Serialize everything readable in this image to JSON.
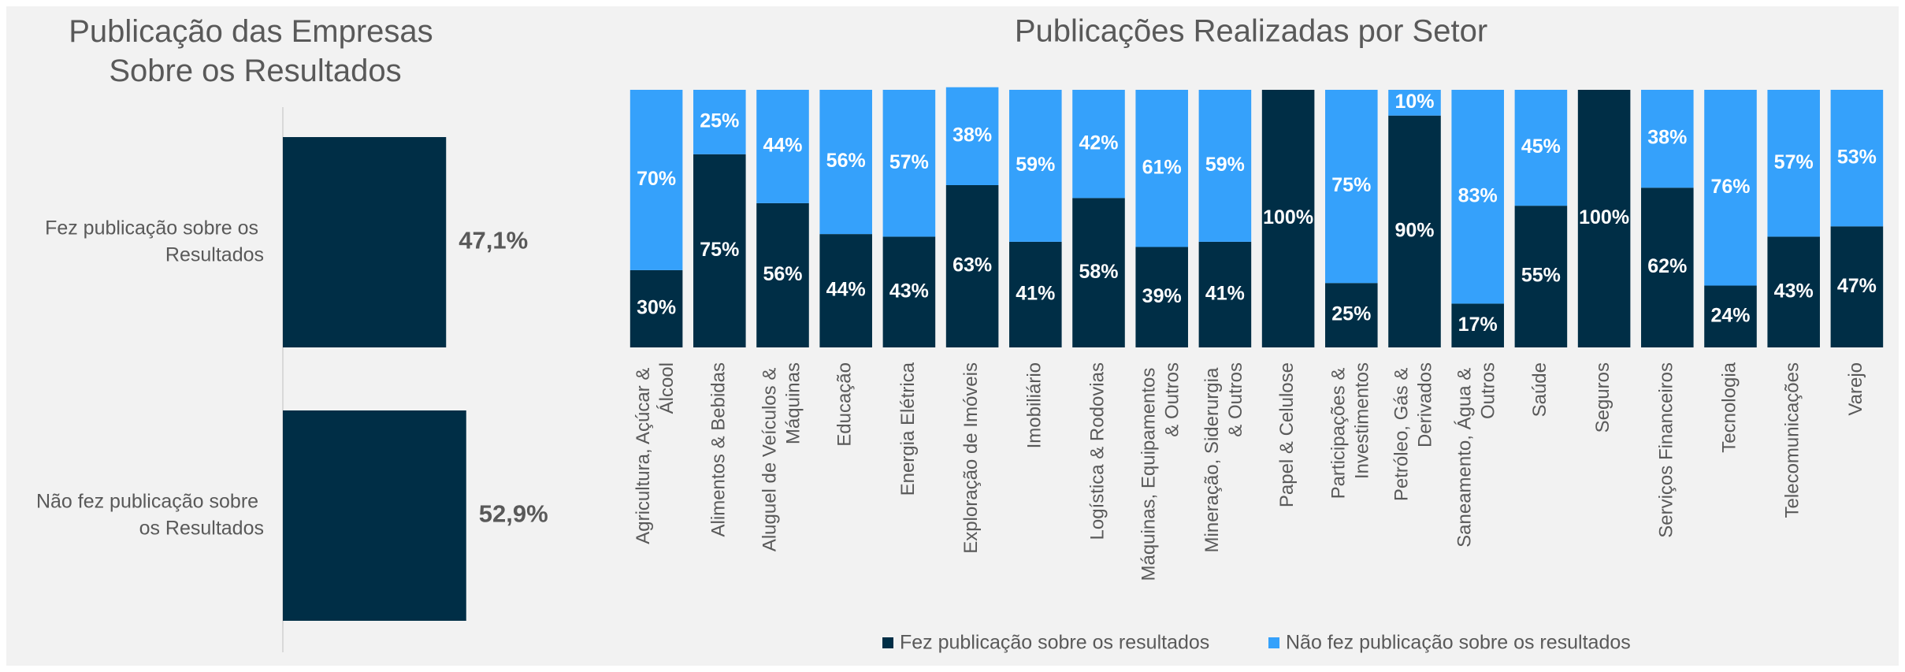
{
  "chart_data": [
    {
      "type": "hbar",
      "title": "Publicação das Empresas Sobre os Resultados",
      "categories": [
        "Fez publicação sobre os Resultados",
        "Não fez publicação sobre os Resultados"
      ],
      "values": [
        47.1,
        52.9
      ],
      "value_labels": [
        "47,1%",
        "52,9%"
      ],
      "color": "#002e46",
      "xlim": [
        0,
        60
      ]
    },
    {
      "type": "stacked-bar",
      "title": "Publicações Realizadas por Setor",
      "categories": [
        "Agricultura, Açúcar & Álcool",
        "Alimentos & Bebidas",
        "Aluguel de Veículos & Máquinas",
        "Educação",
        "Energia Elétrica",
        "Exploração de Imóveis",
        "Imobiliário",
        "Logística & Rodovias",
        "Máquinas, Equipamentos & Outros",
        "Mineração, Siderurgia & Outros",
        "Papel & Celulose",
        "Participações & Investimentos",
        "Petróleo, Gás & Derivados",
        "Saneamento, Água & Outros",
        "Saúde",
        "Seguros",
        "Serviços Financeiros",
        "Tecnologia",
        "Telecomunicações",
        "Varejo"
      ],
      "series": [
        {
          "name": "Fez publicação sobre os resultados",
          "color": "#002e46",
          "values": [
            30,
            75,
            56,
            44,
            43,
            63,
            41,
            58,
            39,
            41,
            100,
            25,
            90,
            17,
            55,
            100,
            62,
            24,
            43,
            47
          ],
          "value_labels": [
            "30%",
            "75%",
            "56%",
            "44%",
            "43%",
            "63%",
            "41%",
            "58%",
            "39%",
            "41%",
            "100%",
            "25%",
            "90%",
            "17%",
            "55%",
            "100%",
            "62%",
            "24%",
            "43%",
            "47%"
          ]
        },
        {
          "name": "Não fez publicação sobre os resultados",
          "color": "#35a1fb",
          "values": [
            70,
            25,
            44,
            56,
            57,
            38,
            59,
            42,
            61,
            59,
            null,
            75,
            10,
            83,
            45,
            null,
            38,
            76,
            57,
            53
          ],
          "value_labels": [
            "70%",
            "25%",
            "44%",
            "56%",
            "57%",
            "38%",
            "59%",
            "42%",
            "61%",
            "59%",
            null,
            "75%",
            "10%",
            "83%",
            "45%",
            null,
            "38%",
            "76%",
            "57%",
            "53%"
          ]
        }
      ],
      "ylim": [
        0,
        100
      ],
      "legend": "bottom"
    }
  ]
}
